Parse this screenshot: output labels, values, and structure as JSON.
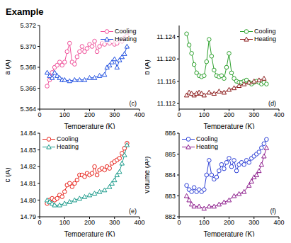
{
  "title": "Example",
  "chart_data": [
    {
      "type": "line",
      "annotation": "(c)",
      "x_label": "Temperature (K)",
      "y_label": "a (Å)",
      "legend": "upper right",
      "xlim": [
        0,
        400
      ],
      "xticks": [
        0,
        100,
        200,
        300,
        400
      ],
      "ylim": [
        5.364,
        5.372
      ],
      "yticks": [
        5.364,
        5.366,
        5.368,
        {
          "value": 5.37,
          "label": "5.370"
        },
        5.372
      ],
      "series": [
        {
          "name": "Cooling",
          "color": "#f0509a",
          "marker": "circle",
          "line_style": "solid",
          "x": [
            30,
            40,
            50,
            60,
            70,
            80,
            90,
            100,
            110,
            120,
            130,
            140,
            150,
            160,
            170,
            180,
            190,
            200,
            210,
            220,
            230,
            240,
            250,
            260,
            270,
            280,
            290,
            300,
            310,
            320,
            330,
            340,
            350
          ],
          "values": [
            5.3662,
            5.3668,
            5.3675,
            5.368,
            5.3682,
            5.3685,
            5.3682,
            5.3685,
            5.3695,
            5.3703,
            5.3685,
            5.3683,
            5.369,
            5.3695,
            5.37,
            5.3695,
            5.3698,
            5.3702,
            5.37,
            5.3705,
            5.3695,
            5.37,
            5.3703,
            5.3702,
            5.3705,
            5.3703,
            5.3705,
            5.3702,
            5.3703,
            5.3706,
            5.3705,
            5.3708,
            5.371
          ]
        },
        {
          "name": "Heating",
          "color": "#1f4fe0",
          "marker": "triangle",
          "line_style": "solid",
          "x": [
            30,
            40,
            50,
            60,
            70,
            80,
            90,
            100,
            120,
            140,
            160,
            180,
            200,
            220,
            240,
            260,
            270,
            280,
            290,
            300,
            310,
            320,
            330,
            340,
            350
          ],
          "values": [
            5.3675,
            5.3672,
            5.367,
            5.3675,
            5.3672,
            5.367,
            5.3668,
            5.3668,
            5.3667,
            5.3668,
            5.3668,
            5.3668,
            5.367,
            5.367,
            5.3672,
            5.3673,
            5.368,
            5.3682,
            5.3685,
            5.3688,
            5.368,
            5.3687,
            5.369,
            5.3693,
            5.37
          ]
        }
      ]
    },
    {
      "type": "line",
      "annotation": "(d)",
      "x_label": "Temperature (K)",
      "y_label": "b (Å)",
      "legend": "upper right",
      "xlim": [
        0,
        400
      ],
      "xticks": [
        0,
        100,
        200,
        300,
        400
      ],
      "ylim": [
        11.111,
        11.126
      ],
      "yticks": [
        11.112,
        11.116,
        {
          "value": 11.12,
          "label": "11.120"
        },
        11.124
      ],
      "series": [
        {
          "name": "Cooling",
          "color": "#2ca02c",
          "marker": "circle",
          "line_style": "solid",
          "x": [
            30,
            40,
            50,
            60,
            70,
            80,
            90,
            100,
            110,
            120,
            130,
            140,
            150,
            160,
            170,
            180,
            190,
            200,
            210,
            220,
            230,
            240,
            250,
            260,
            270,
            280,
            290,
            300,
            310,
            320,
            330,
            340,
            350
          ],
          "values": [
            11.1245,
            11.1225,
            11.121,
            11.119,
            11.1175,
            11.117,
            11.1168,
            11.117,
            11.1195,
            11.1235,
            11.1205,
            11.118,
            11.117,
            11.1168,
            11.117,
            11.1165,
            11.1185,
            11.121,
            11.1175,
            11.1165,
            11.116,
            11.1158,
            11.1158,
            11.116,
            11.1162,
            11.1158,
            11.1155,
            11.1158,
            11.116,
            11.1158,
            11.1155,
            11.1158,
            11.1155
          ]
        },
        {
          "name": "Heating",
          "color": "#8b1a1a",
          "marker": "triangle",
          "line_style": "solid",
          "x": [
            30,
            40,
            50,
            60,
            70,
            80,
            90,
            100,
            120,
            140,
            160,
            180,
            200,
            220,
            240,
            260,
            280,
            300,
            320,
            340
          ],
          "values": [
            11.1135,
            11.114,
            11.1138,
            11.1135,
            11.1138,
            11.114,
            11.1138,
            11.1135,
            11.114,
            11.1138,
            11.1142,
            11.114,
            11.1145,
            11.1148,
            11.1152,
            11.1155,
            11.1158,
            11.116,
            11.1162,
            11.1165
          ]
        }
      ]
    },
    {
      "type": "line",
      "annotation": "(e)",
      "x_label": "Temperature (K)",
      "y_label": "c (Å)",
      "legend": "upper left",
      "xlim": [
        0,
        400
      ],
      "xticks": [
        0,
        100,
        200,
        300,
        400
      ],
      "ylim": [
        14.79,
        14.84
      ],
      "yticks": [
        14.79,
        {
          "value": 14.8,
          "label": "14.80"
        },
        14.81,
        14.82,
        14.83,
        14.84
      ],
      "series": [
        {
          "name": "Cooling",
          "color": "#e8231b",
          "marker": "circle",
          "line_style": "solid",
          "x": [
            30,
            40,
            50,
            60,
            70,
            80,
            90,
            100,
            110,
            120,
            130,
            140,
            150,
            160,
            170,
            180,
            190,
            200,
            210,
            220,
            230,
            240,
            250,
            260,
            270,
            280,
            290,
            300,
            310,
            320,
            330,
            340,
            350
          ],
          "values": [
            14.798,
            14.8,
            14.801,
            14.8,
            14.801,
            14.803,
            14.802,
            14.805,
            14.809,
            14.81,
            14.808,
            14.81,
            14.812,
            14.815,
            14.815,
            14.814,
            14.816,
            14.815,
            14.816,
            14.82,
            14.815,
            14.818,
            14.819,
            14.818,
            14.82,
            14.819,
            14.822,
            14.823,
            14.824,
            14.825,
            14.828,
            14.831,
            14.834
          ]
        },
        {
          "name": "Heating",
          "color": "#1a9a8a",
          "marker": "triangle",
          "line_style": "solid",
          "x": [
            30,
            40,
            50,
            60,
            80,
            100,
            120,
            140,
            160,
            180,
            200,
            220,
            240,
            260,
            280,
            290,
            300,
            310,
            320,
            330,
            340,
            350
          ],
          "values": [
            14.8,
            14.799,
            14.798,
            14.797,
            14.797,
            14.798,
            14.799,
            14.8,
            14.801,
            14.802,
            14.803,
            14.804,
            14.805,
            14.806,
            14.808,
            14.81,
            14.812,
            14.815,
            14.817,
            14.822,
            14.827,
            14.833
          ]
        }
      ]
    },
    {
      "type": "line",
      "annotation": "(f)",
      "x_label": "Temperature (K)",
      "y_label": "Volume (Å³)",
      "legend": "upper left",
      "xlim": [
        0,
        400
      ],
      "xticks": [
        0,
        100,
        200,
        300,
        400
      ],
      "ylim": [
        882,
        886
      ],
      "yticks": [
        882,
        883,
        884,
        885,
        886
      ],
      "series": [
        {
          "name": "Cooling",
          "color": "#2b3ed6",
          "marker": "circle",
          "line_style": "solid",
          "x": [
            30,
            40,
            50,
            60,
            70,
            80,
            90,
            100,
            110,
            120,
            130,
            140,
            150,
            160,
            170,
            180,
            190,
            200,
            210,
            220,
            230,
            240,
            250,
            260,
            270,
            280,
            290,
            300,
            310,
            320,
            330,
            340,
            350
          ],
          "values": [
            883.5,
            883.3,
            883.2,
            883.4,
            883.2,
            883.3,
            883.2,
            883.3,
            884.0,
            884.7,
            884.0,
            883.8,
            883.9,
            884.2,
            884.5,
            884.3,
            884.6,
            884.8,
            884.4,
            884.7,
            884.2,
            884.5,
            884.6,
            884.5,
            884.7,
            884.6,
            884.8,
            884.9,
            885.0,
            885.1,
            885.3,
            885.5,
            885.7
          ]
        },
        {
          "name": "Heating",
          "color": "#8b1a8b",
          "marker": "triangle",
          "line_style": "solid",
          "x": [
            30,
            40,
            50,
            60,
            80,
            100,
            120,
            140,
            160,
            180,
            200,
            220,
            240,
            260,
            280,
            290,
            300,
            310,
            320,
            330,
            340,
            350
          ],
          "values": [
            883.0,
            882.8,
            882.6,
            882.5,
            882.5,
            882.4,
            882.5,
            882.5,
            882.6,
            882.7,
            882.8,
            883.0,
            883.1,
            883.2,
            883.5,
            883.7,
            883.9,
            884.0,
            884.2,
            884.5,
            884.9,
            885.3
          ]
        }
      ]
    }
  ]
}
